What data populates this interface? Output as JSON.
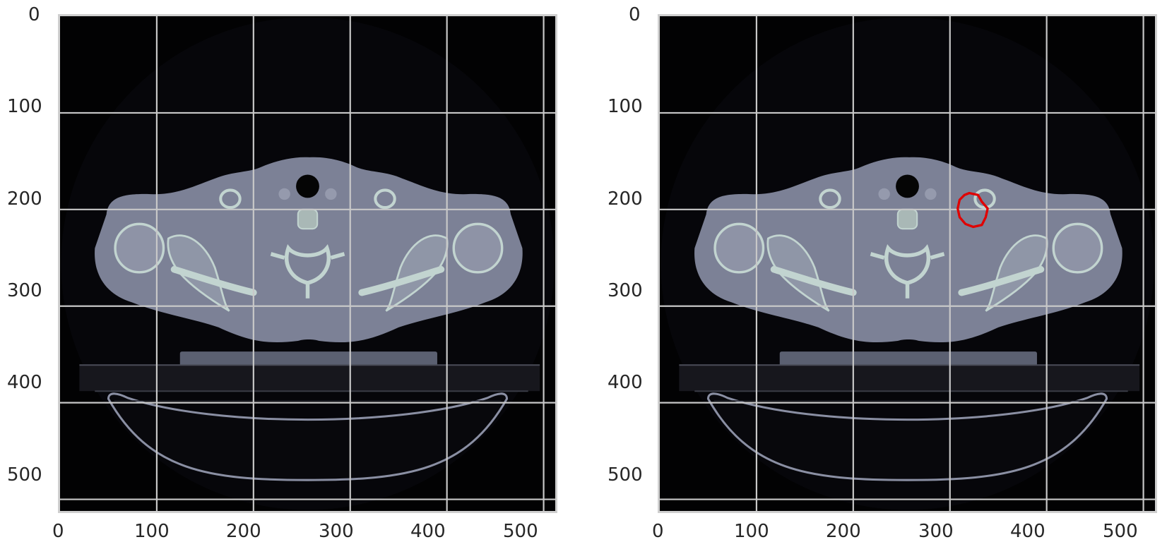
{
  "panels": [
    {
      "id": "left",
      "image": "axial-ct-slice-neck-shoulders",
      "x_ticks": [
        "0",
        "100",
        "200",
        "300",
        "400",
        "500"
      ],
      "y_ticks": [
        "0",
        "100",
        "200",
        "300",
        "400",
        "500"
      ],
      "grid": true,
      "contour": null
    },
    {
      "id": "right",
      "image": "axial-ct-slice-neck-shoulders",
      "x_ticks": [
        "0",
        "100",
        "200",
        "300",
        "400",
        "500"
      ],
      "y_ticks": [
        "0",
        "100",
        "200",
        "300",
        "400",
        "500"
      ],
      "grid": true,
      "contour": {
        "color": "#e00000",
        "points_data": [
          [
            320,
            183
          ],
          [
            329,
            185
          ],
          [
            333,
            192
          ],
          [
            339,
            199
          ],
          [
            337,
            208
          ],
          [
            333,
            216
          ],
          [
            324,
            218
          ],
          [
            316,
            215
          ],
          [
            310,
            208
          ],
          [
            308,
            199
          ],
          [
            310,
            190
          ],
          [
            315,
            185
          ]
        ]
      }
    }
  ],
  "colors": {
    "grid": "#c8c8c8",
    "axes_spine": "#cfcfcf",
    "background": "#000000",
    "tissue": "#7c8196",
    "bone": "#c2d4d0",
    "contour": "#e00000"
  }
}
